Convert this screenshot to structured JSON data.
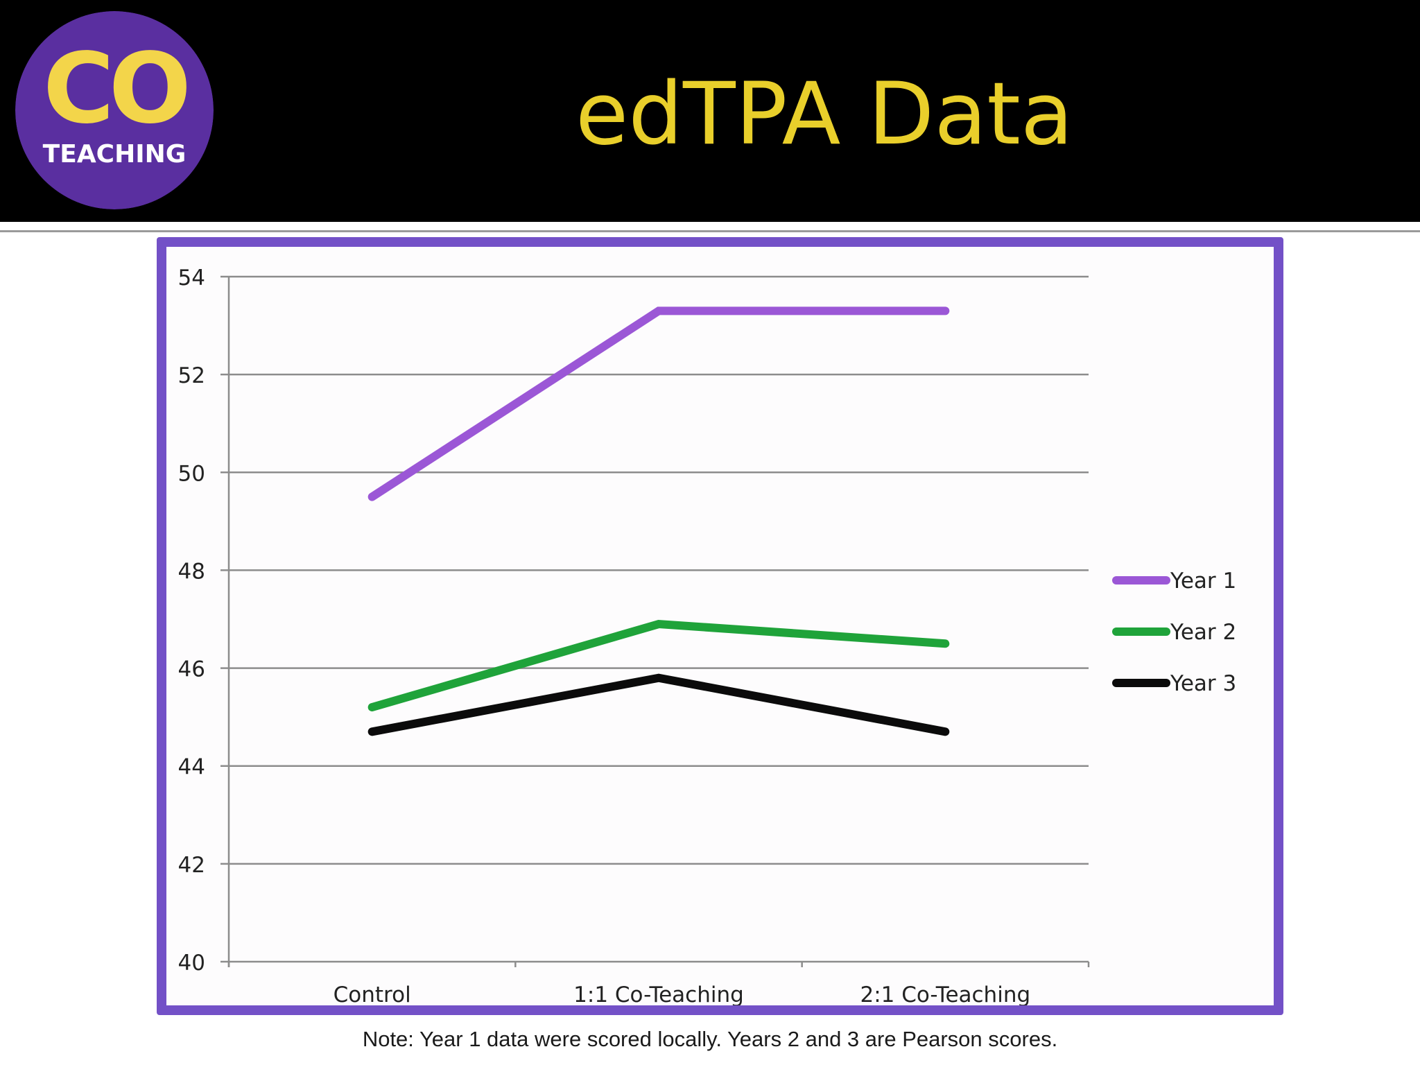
{
  "slide": {
    "title": "edTPA Data",
    "note": "Note: Year 1 data were scored locally. Years 2 and 3 are Pearson scores."
  },
  "logo": {
    "top_text": "CO",
    "bottom_text": "TEACHING",
    "circle_color": "#5a2fa0",
    "letter_color": "#f3d54a"
  },
  "colors": {
    "header_background": "#000000",
    "title_color": "#e9cf2b",
    "frame_color": "#7351c7"
  },
  "chart_data": {
    "type": "line",
    "categories": [
      "Control",
      "1:1 Co-Teaching",
      "2:1 Co-Teaching"
    ],
    "series": [
      {
        "name": "Year 1",
        "values": [
          49.5,
          53.3,
          53.3
        ],
        "color": "#9b57d6"
      },
      {
        "name": "Year 2",
        "values": [
          45.2,
          46.9,
          46.5
        ],
        "color": "#1fa33a"
      },
      {
        "name": "Year 3",
        "values": [
          44.7,
          45.8,
          44.7
        ],
        "color": "#0b0b0b"
      }
    ],
    "ylim": [
      40,
      54
    ],
    "yticks": [
      54,
      52,
      50,
      48,
      46,
      44,
      42,
      40
    ],
    "grid": true,
    "legend_position": "right",
    "title": "",
    "xlabel": "",
    "ylabel": ""
  }
}
